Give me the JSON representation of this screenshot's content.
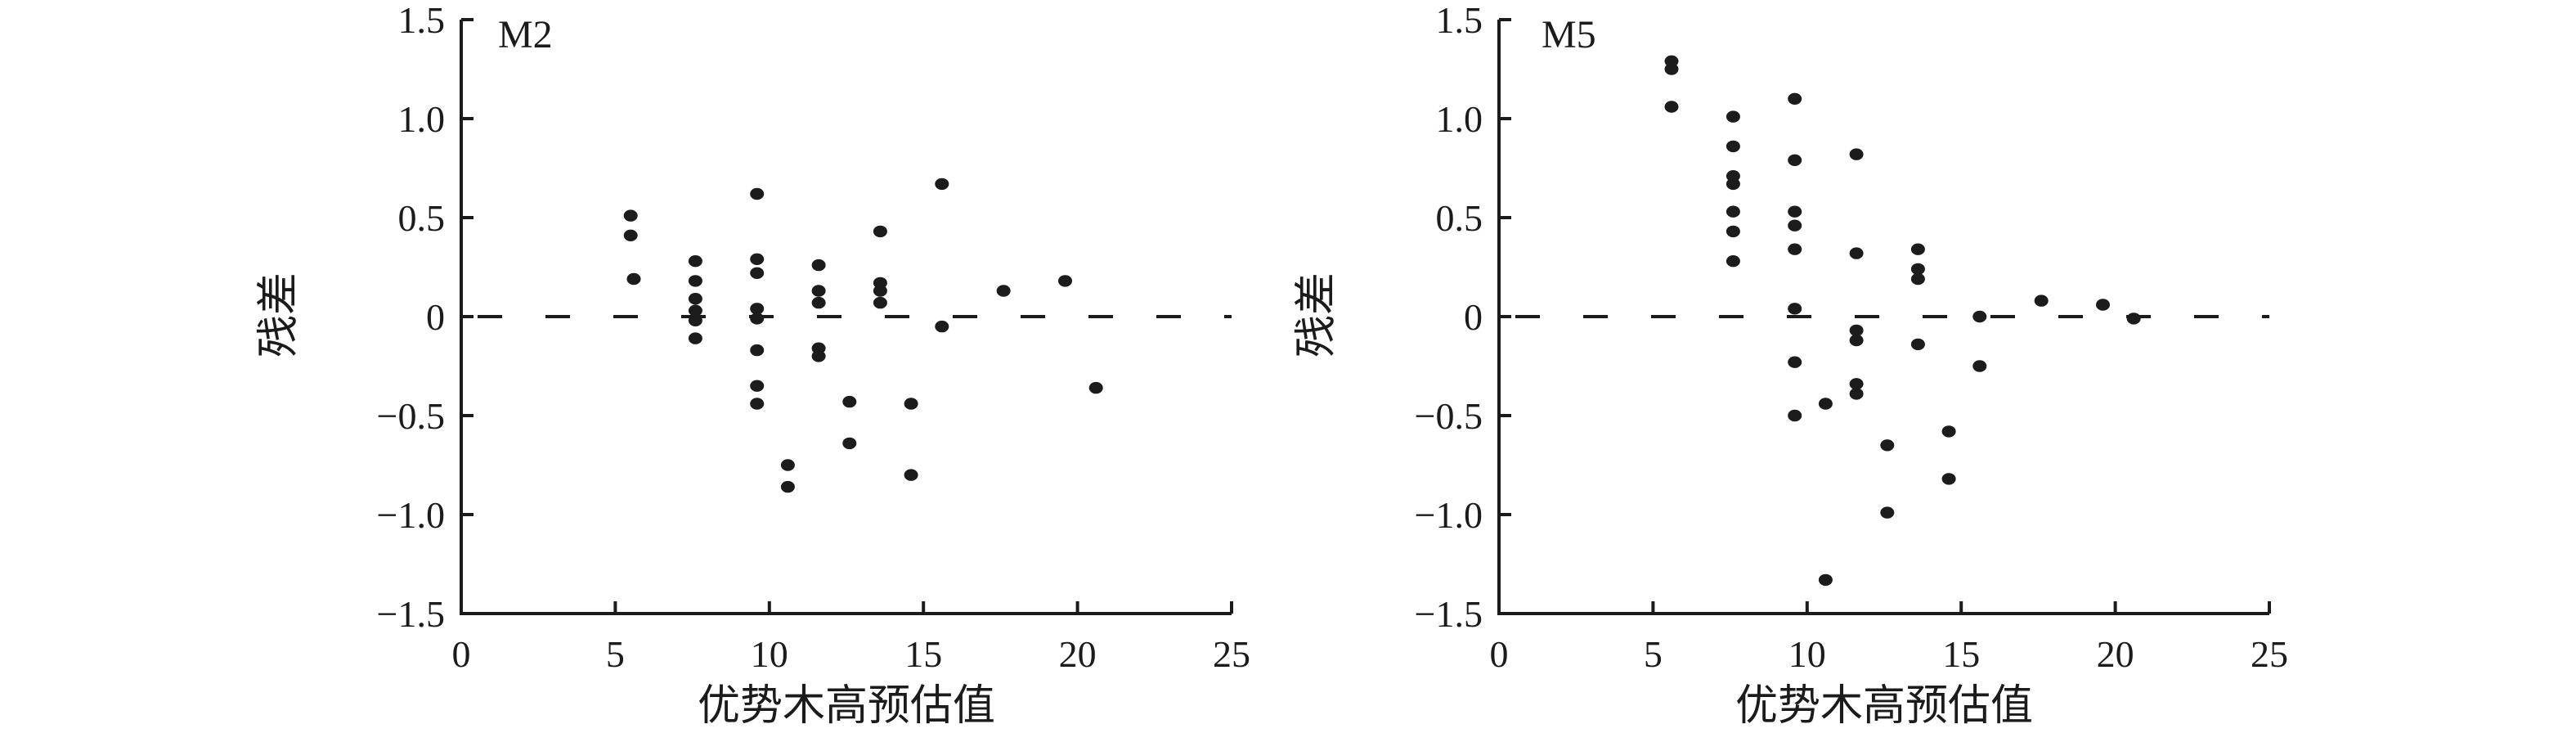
{
  "figure": {
    "background": "#ffffff",
    "ink_color": "#1b1b1b",
    "dot_color": "#1c1c1c"
  },
  "chart_data": [
    {
      "type": "scatter",
      "panel_label": "M2",
      "xlabel": "优势木高预估值",
      "ylabel": "残差",
      "xlim": [
        0,
        25
      ],
      "ylim": [
        -1.5,
        1.5
      ],
      "xticks": [
        0,
        5,
        10,
        15,
        20,
        25
      ],
      "xtick_labels": [
        "0",
        "5",
        "10",
        "15",
        "20",
        "25"
      ],
      "yticks": [
        1.5,
        1.0,
        0.5,
        0,
        -0.5,
        -1.0,
        -1.5
      ],
      "ytick_labels": [
        "1.5",
        "1.0",
        "0.5",
        "0",
        "−0.5",
        "−1.0",
        "−1.5"
      ],
      "zero_line": "dashed",
      "grid": false,
      "legend": null,
      "points": [
        [
          5.5,
          0.51
        ],
        [
          5.5,
          0.41
        ],
        [
          5.6,
          0.19
        ],
        [
          7.6,
          0.28
        ],
        [
          7.6,
          0.18
        ],
        [
          7.6,
          0.09
        ],
        [
          7.6,
          0.03
        ],
        [
          7.6,
          -0.02
        ],
        [
          7.6,
          -0.11
        ],
        [
          9.6,
          0.62
        ],
        [
          9.6,
          0.29
        ],
        [
          9.6,
          0.22
        ],
        [
          9.6,
          0.04
        ],
        [
          9.6,
          -0.01
        ],
        [
          9.6,
          -0.17
        ],
        [
          9.6,
          -0.35
        ],
        [
          9.6,
          -0.44
        ],
        [
          10.6,
          -0.75
        ],
        [
          10.6,
          -0.86
        ],
        [
          11.6,
          0.26
        ],
        [
          11.6,
          0.13
        ],
        [
          11.6,
          0.07
        ],
        [
          11.6,
          -0.16
        ],
        [
          11.6,
          -0.2
        ],
        [
          12.6,
          -0.43
        ],
        [
          12.6,
          -0.64
        ],
        [
          13.6,
          0.43
        ],
        [
          13.6,
          0.17
        ],
        [
          13.6,
          0.13
        ],
        [
          13.6,
          0.07
        ],
        [
          14.6,
          -0.44
        ],
        [
          14.6,
          -0.8
        ],
        [
          15.6,
          0.67
        ],
        [
          15.6,
          -0.05
        ],
        [
          17.6,
          0.13
        ],
        [
          19.6,
          0.18
        ],
        [
          20.6,
          -0.36
        ]
      ]
    },
    {
      "type": "scatter",
      "panel_label": "M5",
      "xlabel": "优势木高预估值",
      "ylabel": "残差",
      "xlim": [
        0,
        25
      ],
      "ylim": [
        -1.5,
        1.5
      ],
      "xticks": [
        0,
        5,
        10,
        15,
        20,
        25
      ],
      "xtick_labels": [
        "0",
        "5",
        "10",
        "15",
        "20",
        "25"
      ],
      "yticks": [
        1.5,
        1.0,
        0.5,
        0,
        -0.5,
        -1.0,
        -1.5
      ],
      "ytick_labels": [
        "1.5",
        "1.0",
        "0.5",
        "0",
        "−0.5",
        "−1.0",
        "−1.5"
      ],
      "zero_line": "dashed",
      "grid": false,
      "legend": null,
      "points": [
        [
          5.6,
          1.29
        ],
        [
          5.6,
          1.25
        ],
        [
          5.6,
          1.06
        ],
        [
          7.6,
          1.01
        ],
        [
          7.6,
          0.86
        ],
        [
          7.6,
          0.71
        ],
        [
          7.6,
          0.67
        ],
        [
          7.6,
          0.53
        ],
        [
          7.6,
          0.43
        ],
        [
          7.6,
          0.28
        ],
        [
          9.6,
          1.1
        ],
        [
          9.6,
          0.79
        ],
        [
          9.6,
          0.53
        ],
        [
          9.6,
          0.46
        ],
        [
          9.6,
          0.34
        ],
        [
          9.6,
          0.04
        ],
        [
          9.6,
          -0.23
        ],
        [
          9.6,
          -0.5
        ],
        [
          10.6,
          -0.44
        ],
        [
          10.6,
          -1.33
        ],
        [
          11.6,
          0.82
        ],
        [
          11.6,
          0.32
        ],
        [
          11.6,
          -0.07
        ],
        [
          11.6,
          -0.12
        ],
        [
          11.6,
          -0.34
        ],
        [
          11.6,
          -0.39
        ],
        [
          12.6,
          -0.65
        ],
        [
          12.6,
          -0.99
        ],
        [
          13.6,
          0.34
        ],
        [
          13.6,
          0.24
        ],
        [
          13.6,
          0.19
        ],
        [
          13.6,
          -0.14
        ],
        [
          14.6,
          -0.58
        ],
        [
          14.6,
          -0.82
        ],
        [
          15.6,
          0.0
        ],
        [
          15.6,
          -0.25
        ],
        [
          17.6,
          0.08
        ],
        [
          19.6,
          0.06
        ],
        [
          20.6,
          -0.01
        ]
      ]
    }
  ]
}
